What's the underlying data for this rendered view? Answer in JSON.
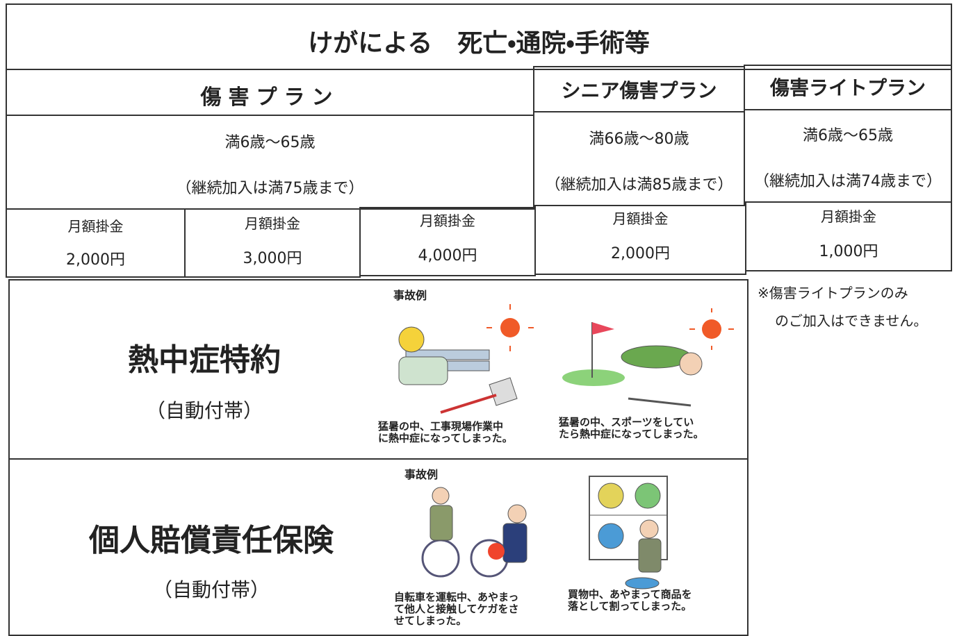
{
  "title": "けがによる　死亡・通院・手術等",
  "plans": [
    {
      "name": "傷害プラン",
      "age": "満6歳～65歳",
      "note": "（継続加入は満75歳まで）",
      "premiums": [
        {
          "label": "月額掛金",
          "amount": "2,000円"
        },
        {
          "label": "月額掛金",
          "amount": "3,000円"
        },
        {
          "label": "月額掛金",
          "amount": "4,000円"
        }
      ]
    },
    {
      "name": "シニア傷害プラン",
      "age": "満66歳～80歳",
      "note": "（継続加入は満85歳まで）",
      "premiums": [
        {
          "label": "月額掛金",
          "amount": "2,000円"
        }
      ]
    },
    {
      "name": "傷害ライトプラン",
      "age": "満6歳～65歳",
      "note": "（継続加入は満74歳まで）",
      "premiums": [
        {
          "label": "月額掛金",
          "amount": "1,000円"
        }
      ]
    }
  ],
  "footnote": [
    "※傷害ライトプランのみ",
    "のご加入はできません。"
  ],
  "riders": [
    {
      "name": "熱中症特約",
      "note": "（自動付帯）",
      "example_label": "事故例",
      "examples": [
        {
          "caption": [
            "猛暑の中、工事現場作業中",
            "に熱中症になってしまった。"
          ]
        },
        {
          "caption": [
            "猛暑の中、スポーツをしてい",
            "たら熱中症になってしまった。"
          ]
        }
      ]
    },
    {
      "name": "個人賠償責任保険",
      "note": "（自動付帯）",
      "example_label": "事故例",
      "examples": [
        {
          "caption": [
            "自転車を運転中、あやまっ",
            "て他人と接触してケガをさ",
            "せてしまった。"
          ]
        },
        {
          "caption": [
            "買物中、あやまって商品を",
            "落として割ってしまった。"
          ]
        }
      ]
    }
  ]
}
